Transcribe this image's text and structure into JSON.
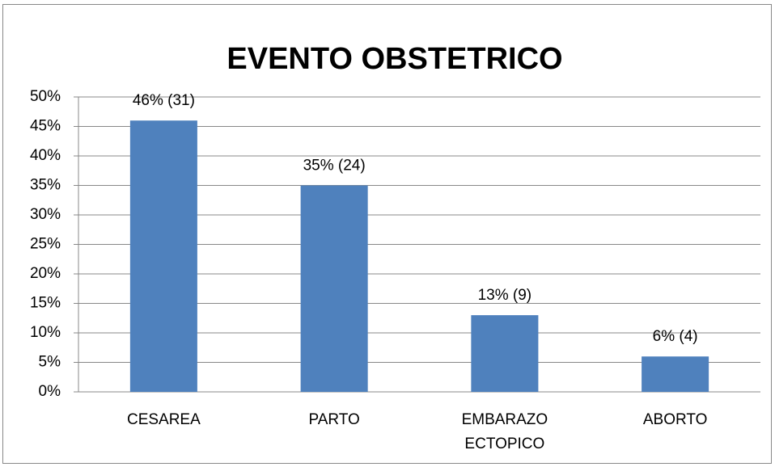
{
  "chart_data": {
    "type": "bar",
    "title": "EVENTO OBSTETRICO",
    "categories": [
      "CESAREA",
      "PARTO",
      "EMBARAZO ECTOPICO",
      "ABORTO"
    ],
    "values": [
      46,
      35,
      13,
      6
    ],
    "value_labels": [
      "46% (31)",
      "35% (24)",
      "13% (9)",
      "6% (4)"
    ],
    "color": "#4f81bd",
    "ylim": [
      0,
      50
    ],
    "yticks": [
      {
        "value": 0,
        "label": "0%"
      },
      {
        "value": 5,
        "label": "5%"
      },
      {
        "value": 10,
        "label": "10%"
      },
      {
        "value": 15,
        "label": "15%"
      },
      {
        "value": 20,
        "label": "20%"
      },
      {
        "value": 25,
        "label": "25%"
      },
      {
        "value": 30,
        "label": "30%"
      },
      {
        "value": 35,
        "label": "35%"
      },
      {
        "value": 40,
        "label": "40%"
      },
      {
        "value": 45,
        "label": "45%"
      },
      {
        "value": 50,
        "label": "50%"
      }
    ],
    "grid": true
  }
}
